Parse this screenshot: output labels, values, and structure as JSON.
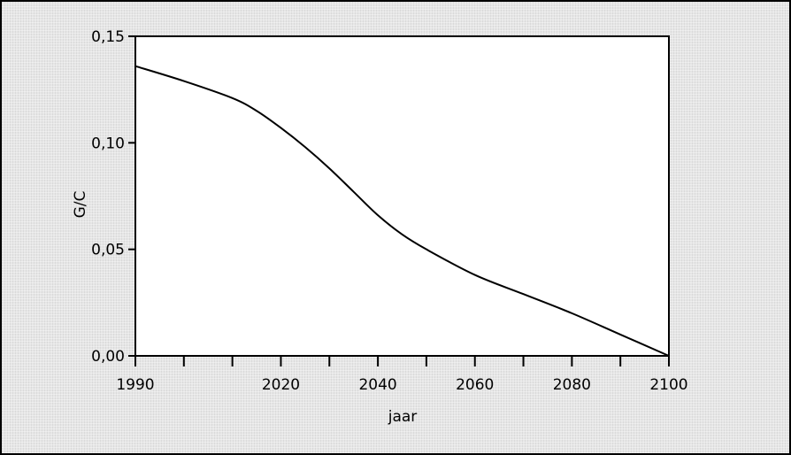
{
  "chart_data": {
    "type": "line",
    "title": "",
    "xlabel": "jaar",
    "ylabel": "G/C",
    "xlim": [
      1990,
      2100
    ],
    "ylim": [
      0,
      0.15
    ],
    "x_ticks": [
      1990,
      2000,
      2010,
      2020,
      2030,
      2040,
      2050,
      2060,
      2070,
      2080,
      2090,
      2100
    ],
    "x_tick_labels": [
      {
        "value": 1990,
        "label": "1990"
      },
      {
        "value": 2020,
        "label": "2020"
      },
      {
        "value": 2040,
        "label": "2040"
      },
      {
        "value": 2060,
        "label": "2060"
      },
      {
        "value": 2080,
        "label": "2080"
      },
      {
        "value": 2100,
        "label": "2100"
      }
    ],
    "y_ticks": [
      {
        "value": 0.0,
        "label": "0,00"
      },
      {
        "value": 0.05,
        "label": "0,05"
      },
      {
        "value": 0.1,
        "label": "0,10"
      },
      {
        "value": 0.15,
        "label": "0,15"
      }
    ],
    "grid": false,
    "series": [
      {
        "x": [
          1990,
          2000,
          2010,
          2015,
          2020,
          2025,
          2030,
          2035,
          2040,
          2045,
          2050,
          2060,
          2070,
          2080,
          2090,
          2100
        ],
        "y": [
          0.136,
          0.129,
          0.121,
          0.115,
          0.107,
          0.098,
          0.088,
          0.077,
          0.066,
          0.057,
          0.05,
          0.038,
          0.029,
          0.02,
          0.01,
          0.0
        ]
      }
    ]
  }
}
